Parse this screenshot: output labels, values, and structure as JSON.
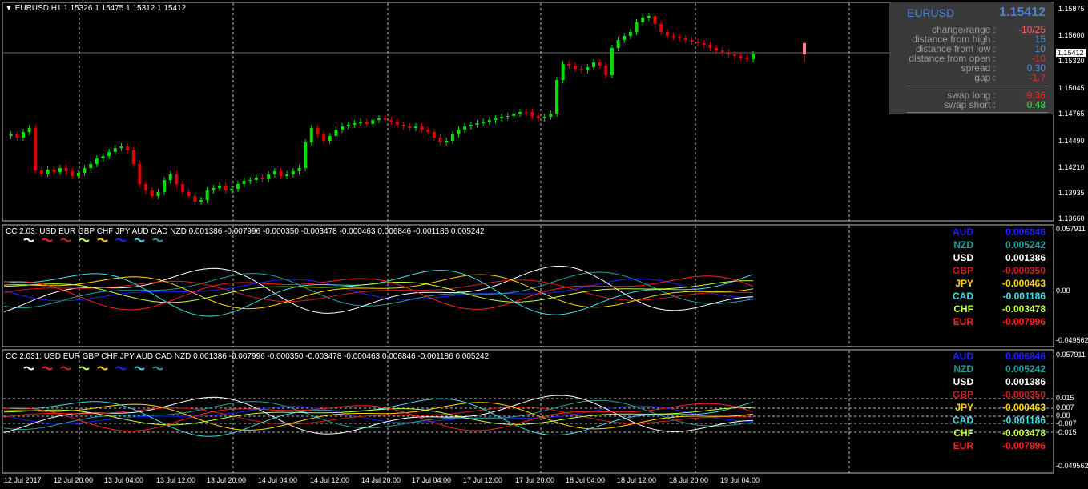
{
  "chart_header": {
    "symbol": "EURUSD,H1",
    "ohlc": "1.15326 1.15475 1.15312 1.15412"
  },
  "price_axis": [
    "1.15875",
    "1.15600",
    "1.15320",
    "1.15045",
    "1.14765",
    "1.14490",
    "1.14210",
    "1.13935",
    "1.13660"
  ],
  "current_price_tag": "1.15412",
  "info": {
    "symbol": "EURUSD",
    "price": "1.15412",
    "rows": [
      {
        "label": "change/range :",
        "value": "-10/25",
        "color": "#ff6060"
      },
      {
        "label": "distance from high :",
        "value": "15",
        "color": "#4a8ee0"
      },
      {
        "label": "distance from low :",
        "value": "10",
        "color": "#4a8ee0"
      },
      {
        "label": "distance from open :",
        "value": "-10",
        "color": "#ff2020"
      },
      {
        "label": "spread :",
        "value": "0.30",
        "color": "#4a8ee0"
      },
      {
        "label": "gap :",
        "value": "-1.7",
        "color": "#ff2020"
      },
      {
        "label": "swap long :",
        "value": "-9.36",
        "color": "#ff2020"
      },
      {
        "label": "swap short :",
        "value": "0.48",
        "color": "#40e040"
      }
    ]
  },
  "indicator1": {
    "header": "CC 2.03:  USD EUR GBP CHF JPY AUD CAD NZD 0.001386 -0.007996 -0.000350 -0.003478 -0.000463 0.006846 -0.001186 0.005242",
    "axis": [
      "0.057911",
      "0.00",
      "-0.049562"
    ],
    "rows": [
      {
        "name": "AUD",
        "value": "0.006846",
        "color": "#2020ff"
      },
      {
        "name": "NZD",
        "value": "0.005242",
        "color": "#20a0a0"
      },
      {
        "name": "USD",
        "value": "0.001386",
        "color": "#ffffff"
      },
      {
        "name": "GBP",
        "value": "-0.000350",
        "color": "#d02020"
      },
      {
        "name": "JPY",
        "value": "-0.000463",
        "color": "#ffd700"
      },
      {
        "name": "CAD",
        "value": "-0.001186",
        "color": "#40e0e0"
      },
      {
        "name": "CHF",
        "value": "-0.003478",
        "color": "#c0ff40"
      },
      {
        "name": "EUR",
        "value": "-0.007996",
        "color": "#ff2020"
      }
    ]
  },
  "indicator2": {
    "header": "CC 2.031:  USD EUR GBP CHF JPY AUD CAD NZD 0.001386 -0.007996 -0.000350 -0.003478 -0.000463 0.006846 -0.001186 0.005242",
    "axis": [
      "0.057911",
      "0.015",
      "0.007",
      "0.00",
      "-0.007",
      "-0.015",
      "-0.049562"
    ]
  },
  "time_axis": [
    "12 Jul 2017",
    "12 Jul 20:00",
    "13 Jul 04:00",
    "13 Jul 12:00",
    "13 Jul 20:00",
    "14 Jul 04:00",
    "14 Jul 12:00",
    "14 Jul 20:00",
    "17 Jul 04:00",
    "17 Jul 12:00",
    "17 Jul 20:00",
    "18 Jul 04:00",
    "18 Jul 12:00",
    "18 Jul 20:00",
    "19 Jul 04:00"
  ],
  "colors": {
    "bull": "#00e000",
    "bear": "#e00000",
    "grid": "#c0c0c0"
  }
}
